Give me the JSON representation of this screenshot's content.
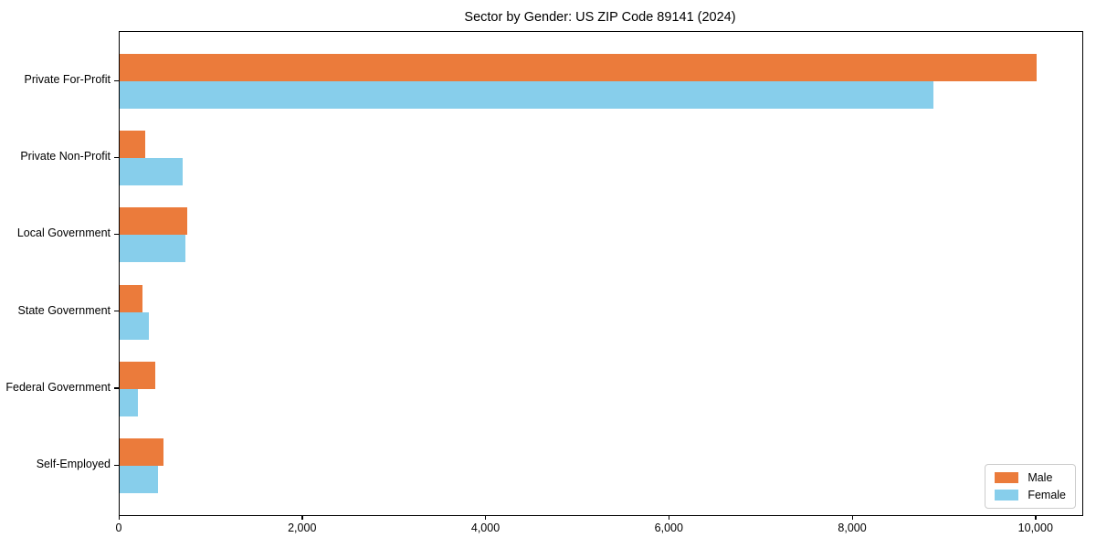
{
  "figure": {
    "title": "Sector by Gender: US ZIP Code 89141 (2024)"
  },
  "chart_data": {
    "type": "bar",
    "orientation": "horizontal",
    "title": "Sector by Gender: US ZIP Code 89141 (2024)",
    "categories": [
      "Private For-Profit",
      "Private Non-Profit",
      "Local Government",
      "State Government",
      "Federal Government",
      "Self-Employed"
    ],
    "series": [
      {
        "name": "Male",
        "color": "#EB7B3B",
        "values": [
          10000,
          280,
          740,
          250,
          390,
          480
        ]
      },
      {
        "name": "Female",
        "color": "#87CEEB",
        "values": [
          8880,
          690,
          720,
          320,
          200,
          420
        ]
      }
    ],
    "xlabel": "",
    "ylabel": "",
    "xlim": [
      0,
      10500
    ],
    "x_ticks": [
      0,
      2000,
      4000,
      6000,
      8000,
      10000
    ],
    "x_tick_labels": [
      "0",
      "2,000",
      "4,000",
      "6,000",
      "8,000",
      "10,000"
    ],
    "grid": false,
    "background_color": "#ffffff",
    "spine_color": "#000000",
    "legend": {
      "position": "lower right",
      "entries": [
        "Male",
        "Female"
      ]
    }
  }
}
